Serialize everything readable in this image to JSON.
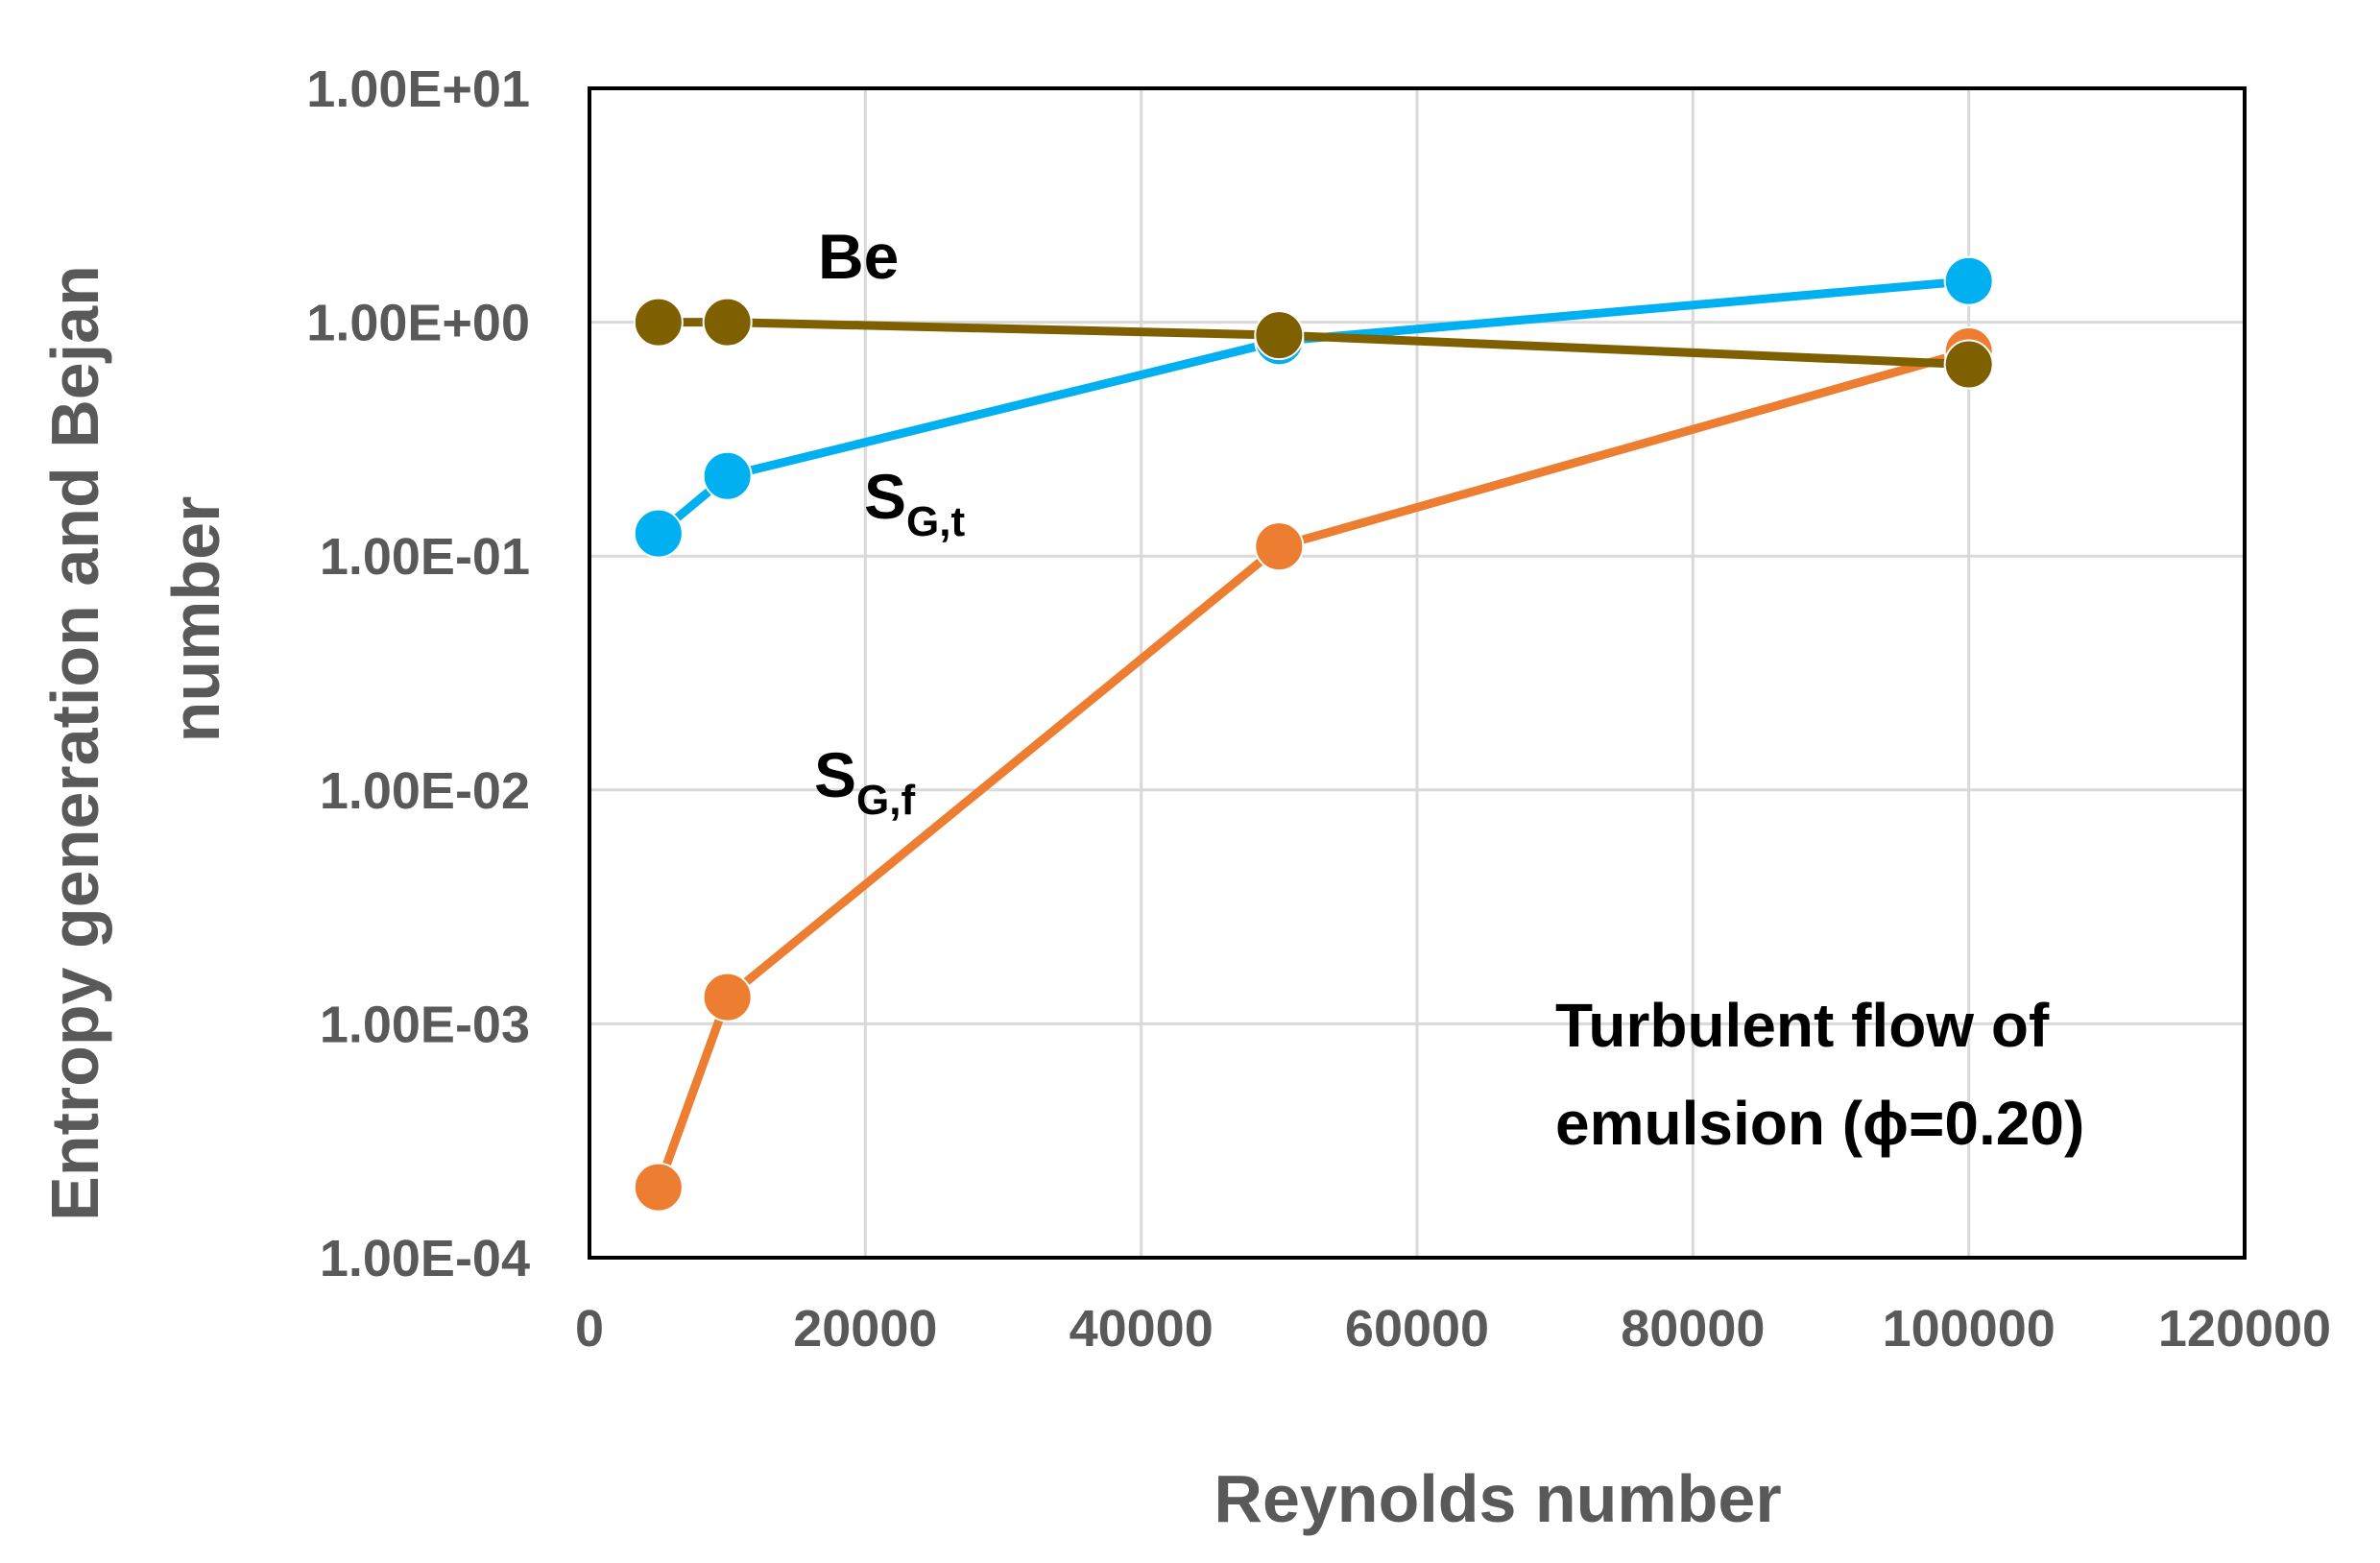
{
  "chart_data": {
    "type": "line",
    "y_scale": "log",
    "xlabel": "Reynolds number",
    "ylabel_line1": "Entropy generation and Bejan",
    "ylabel_line2": "number",
    "xlim": [
      0,
      120000
    ],
    "ylim": [
      0.0001,
      10
    ],
    "x_ticks": [
      "0",
      "20000",
      "40000",
      "60000",
      "80000",
      "100000",
      "120000"
    ],
    "y_ticks": [
      "1.00E-04",
      "1.00E-03",
      "1.00E-02",
      "1.00E-01",
      "1.00E+00",
      "1.00E+01"
    ],
    "grid": true,
    "series": [
      {
        "name": "S_G,f",
        "label_main": "S",
        "label_sub": "G,f",
        "color": "#ED7D31",
        "x": [
          5000,
          10000,
          50000,
          100000
        ],
        "y": [
          0.0002,
          0.0013,
          0.11,
          0.75
        ]
      },
      {
        "name": "S_G,t",
        "label_main": "S",
        "label_sub": "G,t",
        "color": "#00B0F0",
        "x": [
          5000,
          10000,
          50000,
          100000
        ],
        "y": [
          0.125,
          0.22,
          0.83,
          1.5
        ]
      },
      {
        "name": "Be",
        "label_main": "Be",
        "label_sub": "",
        "color": "#7F6000",
        "x": [
          5000,
          10000,
          50000,
          100000
        ],
        "y": [
          1.0,
          1.0,
          0.88,
          0.66
        ]
      }
    ],
    "annotation_line1": "Turbulent flow of",
    "annotation_line2": "emulsion (ϕ=0.20)"
  }
}
